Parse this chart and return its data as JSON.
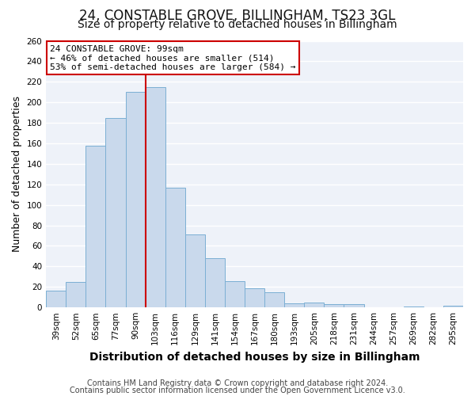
{
  "title": "24, CONSTABLE GROVE, BILLINGHAM, TS23 3GL",
  "subtitle": "Size of property relative to detached houses in Billingham",
  "xlabel": "Distribution of detached houses by size in Billingham",
  "ylabel": "Number of detached properties",
  "categories": [
    "39sqm",
    "52sqm",
    "65sqm",
    "77sqm",
    "90sqm",
    "103sqm",
    "116sqm",
    "129sqm",
    "141sqm",
    "154sqm",
    "167sqm",
    "180sqm",
    "193sqm",
    "205sqm",
    "218sqm",
    "231sqm",
    "244sqm",
    "257sqm",
    "269sqm",
    "282sqm",
    "295sqm"
  ],
  "values": [
    16,
    25,
    158,
    185,
    210,
    215,
    117,
    71,
    48,
    26,
    19,
    15,
    4,
    5,
    3,
    3,
    0,
    0,
    1,
    0,
    2
  ],
  "bar_color": "#c9d9ec",
  "bar_edge_color": "#7bafd4",
  "vline_x": 4.5,
  "vline_color": "#cc0000",
  "annotation_title": "24 CONSTABLE GROVE: 99sqm",
  "annotation_line1": "← 46% of detached houses are smaller (514)",
  "annotation_line2": "53% of semi-detached houses are larger (584) →",
  "annotation_box_edge_color": "#cc0000",
  "ylim": [
    0,
    260
  ],
  "yticks": [
    0,
    20,
    40,
    60,
    80,
    100,
    120,
    140,
    160,
    180,
    200,
    220,
    240,
    260
  ],
  "footer1": "Contains HM Land Registry data © Crown copyright and database right 2024.",
  "footer2": "Contains public sector information licensed under the Open Government Licence v3.0.",
  "fig_background_color": "#ffffff",
  "plot_background_color": "#eef2f9",
  "grid_color": "#ffffff",
  "title_fontsize": 12,
  "subtitle_fontsize": 10,
  "xlabel_fontsize": 10,
  "ylabel_fontsize": 9,
  "tick_fontsize": 7.5,
  "annotation_fontsize": 8,
  "footer_fontsize": 7
}
